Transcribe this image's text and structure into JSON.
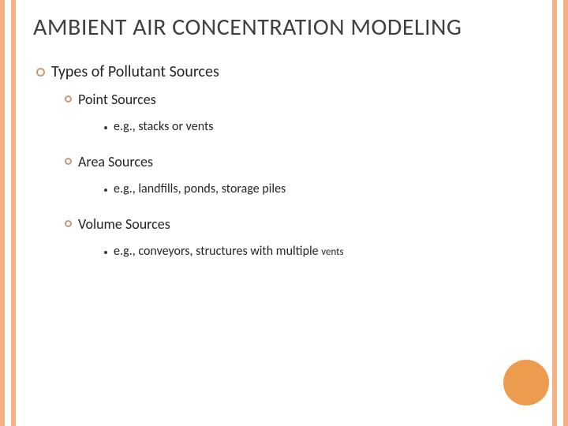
{
  "colors": {
    "stripe": "#f4b183",
    "title": "#404040",
    "text": "#262626",
    "ring": "#c8997a",
    "dot": "#3a3a3a",
    "accent_circle": "#ed9b4f"
  },
  "title": "AMBIENT AIR CONCENTRATION MODELING",
  "level1": "Types of Pollutant Sources",
  "sections": [
    {
      "heading": "Point Sources",
      "example": "e.g., stacks or vents"
    },
    {
      "heading": "Area Sources",
      "example": "e.g., landfills, ponds, storage piles"
    },
    {
      "heading": "Volume Sources",
      "example": "e.g., conveyors, structures with multiple",
      "example_small": "vents"
    }
  ]
}
